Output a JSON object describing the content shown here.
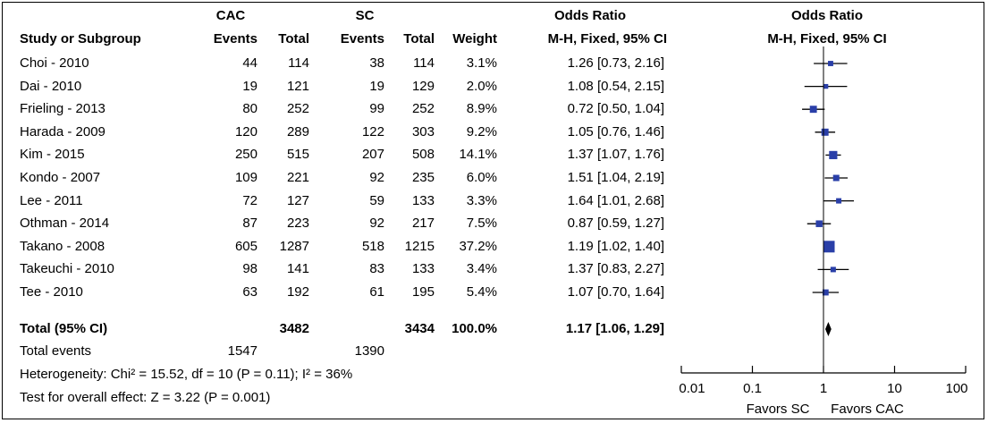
{
  "chart_data": {
    "type": "forest",
    "group_headers": {
      "group1": "CAC",
      "group2": "SC",
      "or_text": "Odds Ratio",
      "or_method_text": "M-H, Fixed, 95% CI",
      "or_plot": "Odds Ratio",
      "or_plot_method": "M-H, Fixed, 95% CI"
    },
    "columns": {
      "study": "Study or Subgroup",
      "events1": "Events",
      "total1": "Total",
      "events2": "Events",
      "total2": "Total",
      "weight": "Weight"
    },
    "studies": [
      {
        "name": "Choi - 2010",
        "e1": "44",
        "t1": "114",
        "e2": "38",
        "t2": "114",
        "weight": "3.1%",
        "ci_text": "1.26 [0.73, 2.16]",
        "or": 1.26,
        "lo": 0.73,
        "hi": 2.16,
        "w": 3.1
      },
      {
        "name": "Dai - 2010",
        "e1": "19",
        "t1": "121",
        "e2": "19",
        "t2": "129",
        "weight": "2.0%",
        "ci_text": "1.08 [0.54, 2.15]",
        "or": 1.08,
        "lo": 0.54,
        "hi": 2.15,
        "w": 2.0
      },
      {
        "name": "Frieling - 2013",
        "e1": "80",
        "t1": "252",
        "e2": "99",
        "t2": "252",
        "weight": "8.9%",
        "ci_text": "0.72 [0.50, 1.04]",
        "or": 0.72,
        "lo": 0.5,
        "hi": 1.04,
        "w": 8.9
      },
      {
        "name": "Harada - 2009",
        "e1": "120",
        "t1": "289",
        "e2": "122",
        "t2": "303",
        "weight": "9.2%",
        "ci_text": "1.05 [0.76, 1.46]",
        "or": 1.05,
        "lo": 0.76,
        "hi": 1.46,
        "w": 9.2
      },
      {
        "name": "Kim - 2015",
        "e1": "250",
        "t1": "515",
        "e2": "207",
        "t2": "508",
        "weight": "14.1%",
        "ci_text": "1.37 [1.07, 1.76]",
        "or": 1.37,
        "lo": 1.07,
        "hi": 1.76,
        "w": 14.1
      },
      {
        "name": "Kondo - 2007",
        "e1": "109",
        "t1": "221",
        "e2": "92",
        "t2": "235",
        "weight": "6.0%",
        "ci_text": "1.51 [1.04, 2.19]",
        "or": 1.51,
        "lo": 1.04,
        "hi": 2.19,
        "w": 6.0
      },
      {
        "name": "Lee - 2011",
        "e1": "72",
        "t1": "127",
        "e2": "59",
        "t2": "133",
        "weight": "3.3%",
        "ci_text": "1.64 [1.01, 2.68]",
        "or": 1.64,
        "lo": 1.01,
        "hi": 2.68,
        "w": 3.3
      },
      {
        "name": "Othman - 2014",
        "e1": "87",
        "t1": "223",
        "e2": "92",
        "t2": "217",
        "weight": "7.5%",
        "ci_text": "0.87 [0.59, 1.27]",
        "or": 0.87,
        "lo": 0.59,
        "hi": 1.27,
        "w": 7.5
      },
      {
        "name": "Takano - 2008",
        "e1": "605",
        "t1": "1287",
        "e2": "518",
        "t2": "1215",
        "weight": "37.2%",
        "ci_text": "1.19 [1.02, 1.40]",
        "or": 1.19,
        "lo": 1.02,
        "hi": 1.4,
        "w": 37.2
      },
      {
        "name": "Takeuchi - 2010",
        "e1": "98",
        "t1": "141",
        "e2": "83",
        "t2": "133",
        "weight": "3.4%",
        "ci_text": "1.37 [0.83, 2.27]",
        "or": 1.37,
        "lo": 0.83,
        "hi": 2.27,
        "w": 3.4
      },
      {
        "name": "Tee - 2010",
        "e1": "63",
        "t1": "192",
        "e2": "61",
        "t2": "195",
        "weight": "5.4%",
        "ci_text": "1.07 [0.70, 1.64]",
        "or": 1.07,
        "lo": 0.7,
        "hi": 1.64,
        "w": 5.4
      }
    ],
    "total": {
      "label": "Total (95% CI)",
      "t1": "3482",
      "t2": "3434",
      "weight": "100.0%",
      "ci_text": "1.17 [1.06, 1.29]",
      "or": 1.17,
      "lo": 1.06,
      "hi": 1.29
    },
    "total_events": {
      "label": "Total events",
      "e1": "1547",
      "e2": "1390"
    },
    "heterogeneity": "Heterogeneity: Chi² = 15.52, df = 10 (P = 0.11); I² = 36%",
    "overall_effect": "Test for overall effect: Z = 3.22 (P = 0.001)",
    "x_axis": {
      "scale": "log",
      "range": [
        0.01,
        100
      ],
      "ticks": [
        0.01,
        0.1,
        1,
        10,
        100
      ],
      "tick_labels": [
        "0.01",
        "0.1",
        "1",
        "10",
        "100"
      ]
    },
    "favors_left": "Favors SC",
    "favors_right": "Favors CAC",
    "colors": {
      "marker": "#2a3fa8",
      "line": "#000000"
    }
  }
}
